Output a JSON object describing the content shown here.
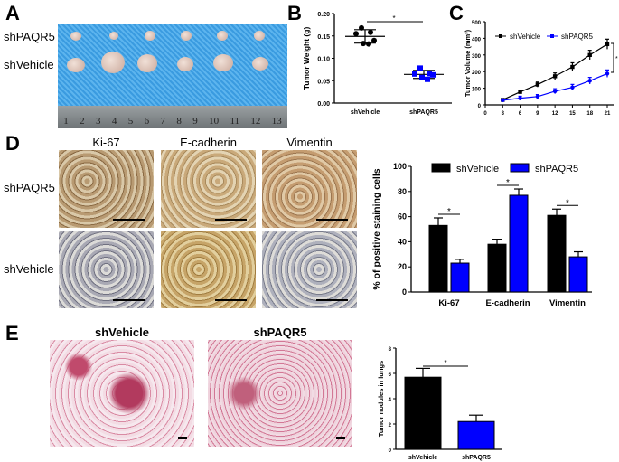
{
  "panels": {
    "a": "A",
    "b": "B",
    "c": "C",
    "d": "D",
    "e": "E"
  },
  "panel_a": {
    "rows": [
      "shPAQR5",
      "shVehicle"
    ],
    "ruler": [
      "1",
      "2",
      "3",
      "4",
      "5",
      "6",
      "7",
      "8",
      "9",
      "10",
      "11",
      "12",
      "13"
    ]
  },
  "panel_d": {
    "columns": [
      "Ki-67",
      "E-cadherin",
      "Vimentin"
    ],
    "rows": [
      "shPAQR5",
      "shVehicle"
    ]
  },
  "panel_e": {
    "columns": [
      "shVehicle",
      "shPAQR5"
    ]
  },
  "colors": {
    "vehicle": "#000000",
    "paqr5": "#0000ff"
  },
  "chart_data": [
    {
      "id": "B",
      "type": "scatter",
      "ylabel": "Tumor Weight (g)",
      "ylim": [
        0,
        0.2
      ],
      "yticks": [
        "0.00",
        "0.05",
        "0.10",
        "0.15",
        "0.20"
      ],
      "categories": [
        "shVehicle",
        "shPAQR5"
      ],
      "series": [
        {
          "name": "shVehicle",
          "values": [
            0.168,
            0.158,
            0.155,
            0.14,
            0.133,
            0.132
          ],
          "mean": 0.149,
          "sd": 0.015
        },
        {
          "name": "shPAQR5",
          "values": [
            0.078,
            0.066,
            0.065,
            0.063,
            0.057,
            0.053
          ],
          "mean": 0.064,
          "sd": 0.009
        }
      ],
      "annotation": "*"
    },
    {
      "id": "C",
      "type": "line",
      "ylabel": "Tumor Volume (mm³)",
      "ylim": [
        0,
        500
      ],
      "yticks": [
        "0",
        "100",
        "200",
        "300",
        "400",
        "500"
      ],
      "x": [
        3,
        6,
        9,
        12,
        15,
        18,
        21
      ],
      "xticks": [
        "0",
        "3",
        "6",
        "9",
        "12",
        "15",
        "18",
        "21"
      ],
      "series": [
        {
          "name": "shVehicle",
          "values": [
            30,
            78,
            122,
            172,
            228,
            300,
            365
          ],
          "err": [
            4,
            6,
            15,
            20,
            25,
            28,
            30
          ]
        },
        {
          "name": "shPAQR5",
          "values": [
            28,
            40,
            50,
            82,
            105,
            145,
            188
          ],
          "err": [
            4,
            12,
            12,
            15,
            18,
            20,
            22
          ]
        }
      ],
      "legend": [
        "shVehicle",
        "shPAQR5"
      ],
      "annotation": "*"
    },
    {
      "id": "D",
      "type": "bar",
      "ylabel": "% of positive staining cells",
      "ylim": [
        0,
        100
      ],
      "yticks": [
        "0",
        "20",
        "40",
        "60",
        "80",
        "100"
      ],
      "categories": [
        "Ki-67",
        "E-cadherin",
        "Vimentin"
      ],
      "series": [
        {
          "name": "shVehicle",
          "values": [
            53,
            38,
            61
          ],
          "err": [
            6,
            4,
            5
          ]
        },
        {
          "name": "shPAQR5",
          "values": [
            23,
            77,
            28
          ],
          "err": [
            3,
            5,
            4
          ]
        }
      ],
      "legend": [
        "shVehicle",
        "shPAQR5"
      ],
      "annotation": "*"
    },
    {
      "id": "E",
      "type": "bar",
      "ylabel": "Tumor nodules in lungs",
      "ylim": [
        0,
        8
      ],
      "yticks": [
        "0",
        "2",
        "4",
        "6",
        "8"
      ],
      "categories": [
        "shVehicle",
        "shPAQR5"
      ],
      "series": [
        {
          "name": "value",
          "values": [
            5.7,
            2.2
          ],
          "err": [
            0.7,
            0.5
          ]
        }
      ],
      "annotation": "*"
    }
  ]
}
